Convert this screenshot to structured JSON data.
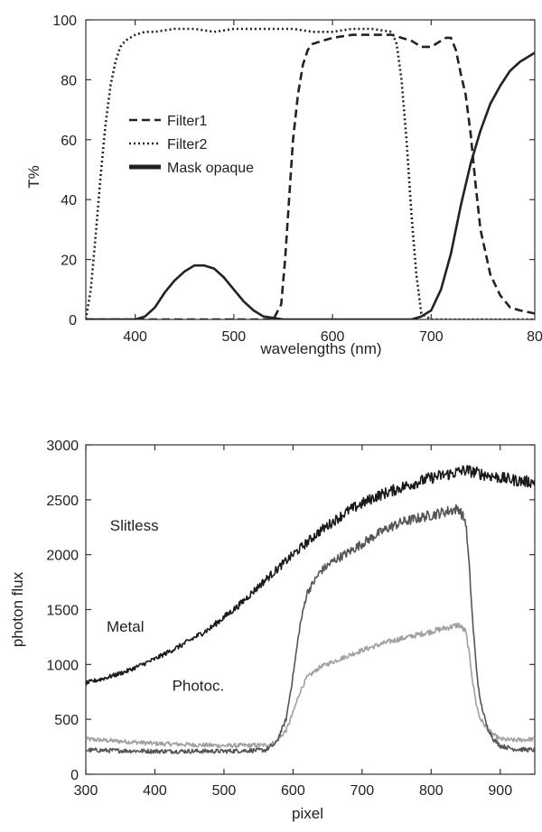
{
  "chart_data": [
    {
      "type": "line",
      "xlabel": "wavelengths (nm)",
      "ylabel": "T%",
      "xlim": [
        350,
        805
      ],
      "ylim": [
        0,
        100
      ],
      "xticks": [
        400,
        500,
        600,
        700
      ],
      "xtick_labels": [
        "400",
        "500",
        "600",
        "700"
      ],
      "last_tick_value": 805,
      "last_tick_label": "80",
      "yticks": [
        0,
        20,
        40,
        60,
        80,
        100
      ],
      "ytick_labels": [
        "0",
        "20",
        "40",
        "60",
        "80",
        "100"
      ],
      "legend": [
        "Filter1",
        "Filter2",
        "Mask opaque"
      ],
      "series": [
        {
          "name": "Filter1",
          "style": "dashed",
          "x": [
            350,
            400,
            450,
            500,
            540,
            548,
            552,
            556,
            560,
            565,
            570,
            575,
            580,
            590,
            600,
            620,
            640,
            660,
            670,
            680,
            690,
            700,
            710,
            715,
            720,
            725,
            730,
            735,
            740,
            745,
            750,
            760,
            770,
            780,
            790,
            805
          ],
          "y": [
            0,
            0,
            0,
            0,
            0,
            5,
            20,
            40,
            60,
            75,
            85,
            90,
            92,
            93,
            94,
            95,
            95,
            95,
            94,
            93,
            91,
            91,
            93,
            94,
            94,
            90,
            82,
            75,
            62,
            45,
            30,
            15,
            8,
            4,
            3,
            2
          ]
        },
        {
          "name": "Filter2",
          "style": "dotted",
          "x": [
            350,
            355,
            360,
            365,
            370,
            375,
            380,
            385,
            390,
            395,
            400,
            410,
            420,
            440,
            460,
            480,
            500,
            520,
            540,
            560,
            580,
            600,
            620,
            640,
            660,
            665,
            670,
            675,
            680,
            685,
            690,
            700,
            750,
            805
          ],
          "y": [
            0,
            10,
            28,
            48,
            65,
            78,
            86,
            91,
            93,
            94,
            95,
            96,
            96,
            97,
            97,
            96,
            97,
            97,
            97,
            97,
            96,
            96,
            97,
            97,
            96,
            92,
            80,
            60,
            35,
            15,
            2,
            0,
            0,
            0
          ]
        },
        {
          "name": "Mask opaque",
          "style": "solid",
          "x": [
            350,
            400,
            410,
            420,
            430,
            440,
            450,
            460,
            470,
            480,
            490,
            500,
            510,
            520,
            530,
            540,
            550,
            600,
            650,
            680,
            690,
            700,
            710,
            720,
            730,
            740,
            750,
            760,
            770,
            780,
            790,
            805
          ],
          "y": [
            0,
            0,
            1,
            4,
            9,
            13,
            16,
            18,
            18,
            17,
            14,
            10,
            6,
            3,
            1,
            0.5,
            0,
            0,
            0,
            0,
            1,
            3,
            10,
            22,
            38,
            52,
            63,
            72,
            78,
            83,
            86,
            89
          ]
        }
      ]
    },
    {
      "type": "line",
      "xlabel": "pixel",
      "ylabel": "photon flux",
      "xlim": [
        300,
        950
      ],
      "ylim": [
        0,
        3000
      ],
      "xticks": [
        300,
        400,
        500,
        600,
        700,
        800,
        900
      ],
      "xtick_labels": [
        "300",
        "400",
        "500",
        "600",
        "700",
        "800",
        "900"
      ],
      "yticks": [
        0,
        500,
        1000,
        1500,
        2000,
        2500,
        3000
      ],
      "ytick_labels": [
        "0",
        "500",
        "1000",
        "1500",
        "2000",
        "2500",
        "3000"
      ],
      "annotations": [
        {
          "text": "Slitless",
          "x": 335,
          "y": 2220
        },
        {
          "text": "Metal",
          "x": 330,
          "y": 1300
        },
        {
          "text": "Photoc.",
          "x": 425,
          "y": 760
        }
      ],
      "series": [
        {
          "name": "Slitless",
          "color": "#1a1a1a",
          "x": [
            300,
            330,
            360,
            400,
            440,
            480,
            520,
            560,
            600,
            640,
            680,
            720,
            760,
            800,
            830,
            850,
            870,
            900,
            930,
            950
          ],
          "y": [
            830,
            880,
            940,
            1050,
            1180,
            1330,
            1530,
            1770,
            2000,
            2220,
            2400,
            2530,
            2620,
            2700,
            2740,
            2770,
            2740,
            2700,
            2670,
            2660
          ]
        },
        {
          "name": "Metal",
          "color": "#555555",
          "x": [
            300,
            400,
            500,
            560,
            575,
            590,
            600,
            610,
            620,
            640,
            660,
            680,
            700,
            720,
            740,
            760,
            780,
            800,
            820,
            840,
            850,
            855,
            860,
            865,
            870,
            880,
            890,
            900,
            920,
            950
          ],
          "y": [
            220,
            210,
            210,
            220,
            280,
            500,
            900,
            1350,
            1650,
            1850,
            1950,
            2020,
            2100,
            2180,
            2250,
            2300,
            2330,
            2360,
            2390,
            2420,
            2300,
            1900,
            1400,
            1000,
            700,
            450,
            320,
            260,
            230,
            220
          ]
        },
        {
          "name": "Photoc.",
          "color": "#a0a0a0",
          "x": [
            300,
            400,
            500,
            560,
            575,
            590,
            600,
            610,
            620,
            640,
            660,
            680,
            700,
            720,
            740,
            760,
            780,
            800,
            820,
            840,
            850,
            855,
            860,
            865,
            870,
            880,
            890,
            900,
            920,
            950
          ],
          "y": [
            320,
            280,
            260,
            265,
            290,
            400,
            560,
            750,
            880,
            980,
            1030,
            1080,
            1130,
            1170,
            1210,
            1240,
            1270,
            1300,
            1330,
            1360,
            1300,
            1100,
            850,
            650,
            520,
            420,
            360,
            320,
            310,
            320
          ]
        }
      ]
    }
  ]
}
